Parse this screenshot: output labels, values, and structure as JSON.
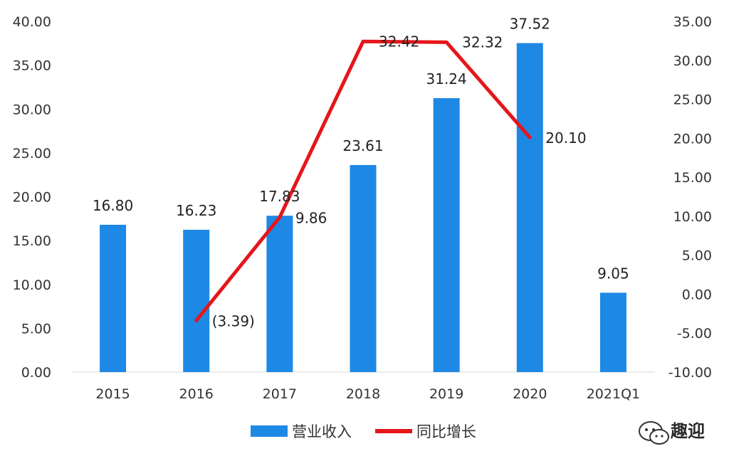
{
  "chart_data": {
    "type": "bar",
    "categories": [
      "2015",
      "2016",
      "2017",
      "2018",
      "2019",
      "2020",
      "2021Q1"
    ],
    "series": [
      {
        "name": "营业收入",
        "type": "bar",
        "axis": "left",
        "color": "#1E88E5",
        "values": [
          16.8,
          16.23,
          17.83,
          23.61,
          31.24,
          37.52,
          9.05
        ],
        "labels": [
          "16.80",
          "16.23",
          "17.83",
          "23.61",
          "31.24",
          "37.52",
          "9.05"
        ]
      },
      {
        "name": "同比增长",
        "type": "line",
        "axis": "right",
        "color": "#E5161A",
        "values": [
          null,
          -3.39,
          9.86,
          32.42,
          32.32,
          20.1,
          null
        ],
        "labels": [
          "",
          "(3.39)",
          "9.86",
          "32.42",
          "32.32",
          "20.10",
          ""
        ]
      }
    ],
    "y_left": {
      "ylim": [
        0,
        40
      ],
      "ticks": [
        "0.00",
        "5.00",
        "10.00",
        "15.00",
        "20.00",
        "25.00",
        "30.00",
        "35.00",
        "40.00"
      ]
    },
    "y_right": {
      "ylim": [
        -10,
        35
      ],
      "ticks": [
        "-10.00",
        "-5.00",
        "0.00",
        "5.00",
        "10.00",
        "15.00",
        "20.00",
        "25.00",
        "30.00",
        "35.00"
      ]
    },
    "negative_label_color": "#C0191B",
    "grid": false,
    "legend": "bottom",
    "title": "",
    "xlabel": "",
    "ylabel": ""
  },
  "watermark": {
    "text": "趣迎",
    "icon": "wechat-icon"
  }
}
